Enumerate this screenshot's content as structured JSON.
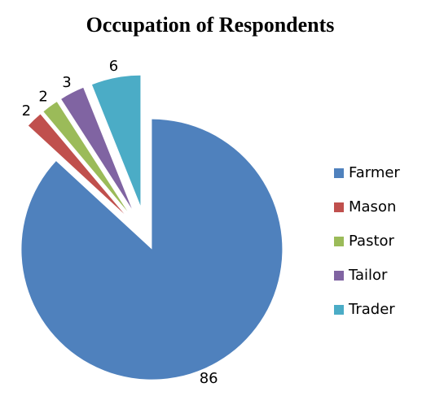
{
  "chart_data": {
    "type": "pie",
    "title": "Occupation of Respondents",
    "categories": [
      "Farmer",
      "Mason",
      "Pastor",
      "Tailor",
      "Trader"
    ],
    "values": [
      86,
      2,
      2,
      3,
      6
    ],
    "colors": [
      "#4f81bd",
      "#c0504d",
      "#9bbb59",
      "#8064a2",
      "#4bacc6"
    ],
    "legend": "right"
  }
}
